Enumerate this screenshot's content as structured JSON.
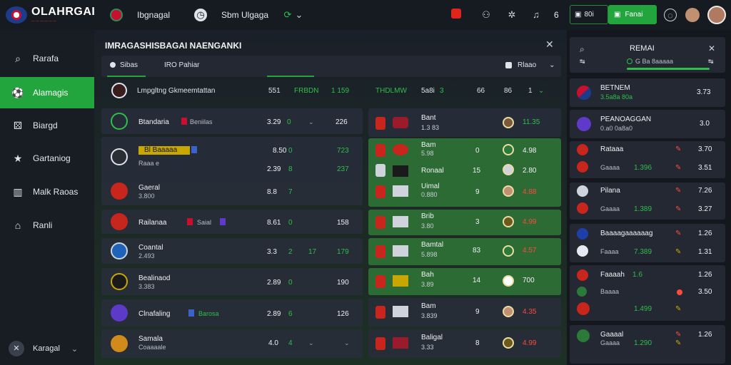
{
  "header": {
    "brand": "OLAHRGAI",
    "tagline": "——————",
    "nav_label": "Ibgnagal",
    "region_label": "Sbm Ulgaga",
    "badge_count": "6",
    "login_label": "80i",
    "register_label": "Fanai"
  },
  "sidebar": {
    "items": [
      {
        "label": "Rarafa",
        "icon": "search-icon"
      },
      {
        "label": "Alamagis",
        "icon": "soccer-ball-icon"
      },
      {
        "label": "Biargd",
        "icon": "dice-icon"
      },
      {
        "label": "Gartaniog",
        "icon": "star-icon"
      },
      {
        "label": "Malk Raoas",
        "icon": "chart-icon"
      },
      {
        "label": "Ranli",
        "icon": "home-icon"
      }
    ],
    "footer_label": "Karagal"
  },
  "main": {
    "title": "IMRAGASHISBAGAI NAENGANKI",
    "tabs": [
      {
        "label": "Sibas"
      },
      {
        "label": "IRO Pahiar"
      }
    ],
    "filter_label": "Rlaao",
    "header": {
      "league": "Lmpgltng Gkmeemtattan",
      "c1": "551",
      "c2": "FRBDN",
      "c3": "1 159",
      "c4": "THDLMW",
      "c5": "5a8i",
      "c6": "3",
      "c7": "66",
      "c8": "86",
      "c9": "1"
    },
    "left_rows": [
      {
        "name": "Btandaria",
        "tag": "Beniilas",
        "sub": "",
        "v1": "3.29",
        "g1": "0",
        "v2": "226",
        "g2": ""
      },
      {
        "name": "Bl Baaaaa",
        "tag": "",
        "sub": "Raaa e",
        "v1": "8.50",
        "g1": "0",
        "v2": "723",
        "g2": ""
      },
      {
        "name": "",
        "tag": "",
        "sub": "",
        "v1": "2.39",
        "g1": "8",
        "v2": "237",
        "g2": ""
      },
      {
        "name": "Gaeral",
        "tag": "",
        "sub": "3.800",
        "v1": "8.8",
        "g1": "7",
        "v2": "",
        "g2": ""
      },
      {
        "name": "Railanaa",
        "tag": "Saial",
        "sub": "",
        "v1": "8.61",
        "g1": "0",
        "v2": "158",
        "g2": ""
      },
      {
        "name": "Coantal",
        "tag": "",
        "sub": "2.493",
        "v1": "3.3",
        "g1": "2",
        "v2": "179",
        "g2": "17"
      },
      {
        "name": "Bealinaod",
        "tag": "",
        "sub": "3.383",
        "v1": "2.89",
        "g1": "0",
        "v2": "190",
        "g2": ""
      },
      {
        "name": "Clnafaling",
        "tag": "Barosa",
        "sub": "",
        "v1": "2.89",
        "g1": "6",
        "v2": "126",
        "g2": ""
      },
      {
        "name": "Samala",
        "tag": "",
        "sub": "Coaaaale",
        "v1": "4.0",
        "g1": "4",
        "v2": "",
        "g2": ""
      }
    ],
    "right_rows": [
      {
        "name": "Bant",
        "sub": "1.3 83",
        "num": "",
        "odd": "11.35",
        "odd_color": "green"
      },
      {
        "name": "Bam",
        "sub": "5.98",
        "num": "0",
        "odd": "4.98",
        "odd_color": "green"
      },
      {
        "name": "Ronaal",
        "sub": "",
        "num": "15",
        "odd": "2.80",
        "odd_color": "green"
      },
      {
        "name": "Uimal",
        "sub": "0.880",
        "num": "9",
        "odd": "4.88",
        "odd_color": "red"
      },
      {
        "name": "Brib",
        "sub": "3.80",
        "num": "3",
        "odd": "4.99",
        "odd_color": "red"
      },
      {
        "name": "Bamtal",
        "sub": "5.898",
        "num": "83",
        "odd": "4.57",
        "odd_color": "red"
      },
      {
        "name": "Bah",
        "sub": "3.89",
        "num": "14",
        "odd": "700",
        "odd_color": "white"
      },
      {
        "name": "Bam",
        "sub": "3.839",
        "num": "9",
        "odd": "4.35",
        "odd_color": "red"
      },
      {
        "name": "Baligal",
        "sub": "3.33",
        "num": "8",
        "odd": "4.99",
        "odd_color": "red"
      }
    ]
  },
  "right_panel": {
    "title": "REMAI",
    "subtitle": "G Ba 8aaaaa",
    "items": [
      {
        "title": "BETNEM",
        "sub": "3.5a8a 80a",
        "num": "3.73"
      },
      {
        "title": "PEANOAGGAN",
        "sub": "0.a0 0a8a0",
        "num": "3.0"
      },
      {
        "title": "Rataaa",
        "sub": "Gaaaa",
        "num": "3.70",
        "num2": "3.51",
        "odd": "1.396"
      },
      {
        "title": "Pilana",
        "sub": "Gaaaa",
        "num": "7.26",
        "num2": "3.27",
        "odd": "1.389"
      },
      {
        "title": "Baaaagaaaaaag",
        "sub": "Faaaa",
        "num": "1.26",
        "num2": "1.31",
        "odd": "7.389"
      },
      {
        "title": "Faaaah",
        "sub": "Baaaa",
        "num": "1.26",
        "num2": "3.50",
        "odd": "1.499",
        "extra": "1.6"
      },
      {
        "title": "Gaaaal",
        "sub": "Gaaaa",
        "num": "1.26",
        "odd": "1.290"
      }
    ]
  },
  "colors": {
    "accent": "#22a53c",
    "odd_red": "#ff4a3d",
    "panel": "#232833"
  }
}
